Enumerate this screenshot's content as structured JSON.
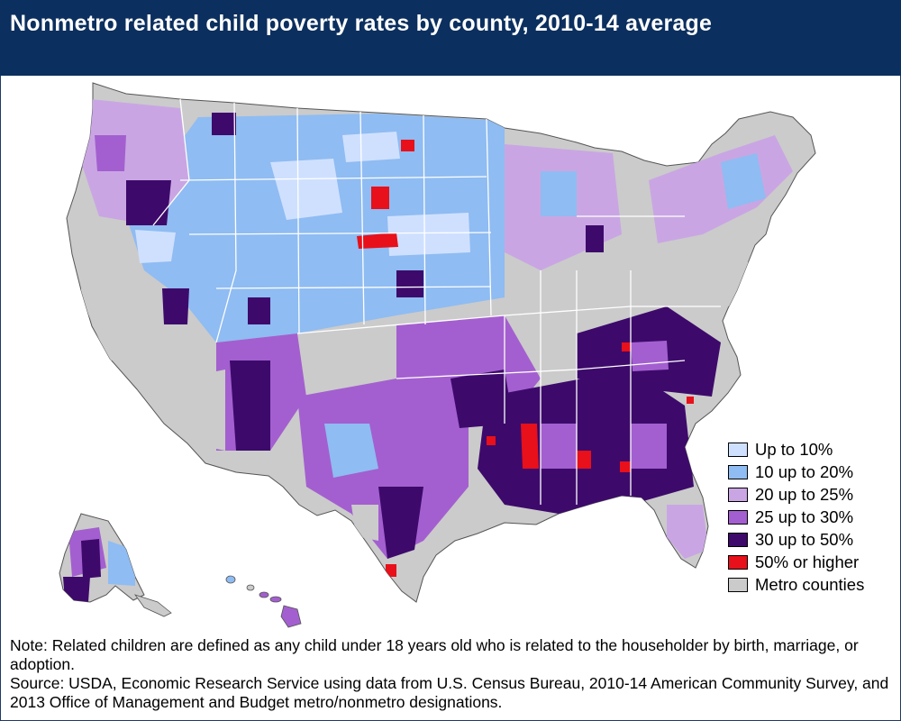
{
  "title": "Nonmetro related child poverty rates by county, 2010-14 average",
  "legend": [
    {
      "label": "Up to 10%",
      "color": "#cfe0ff"
    },
    {
      "label": "10 up to 20%",
      "color": "#8fbcf2"
    },
    {
      "label": "20 up to 25%",
      "color": "#c9a6e3"
    },
    {
      "label": "25 up to 30%",
      "color": "#a35fcf"
    },
    {
      "label": "30 up to 50%",
      "color": "#3d0a6b"
    },
    {
      "label": "50% or higher",
      "color": "#e8101a"
    },
    {
      "label": "Metro counties",
      "color": "#cbcbcb"
    }
  ],
  "note": "Note: Related children are defined as any child under 18 years old who is related to the householder by birth, marriage, or adoption.",
  "source": "Source: USDA, Economic Research Service using data from U.S. Census Bureau, 2010-14 American Community Survey, and 2013 Office of Management and Budget metro/nonmetro designations."
}
